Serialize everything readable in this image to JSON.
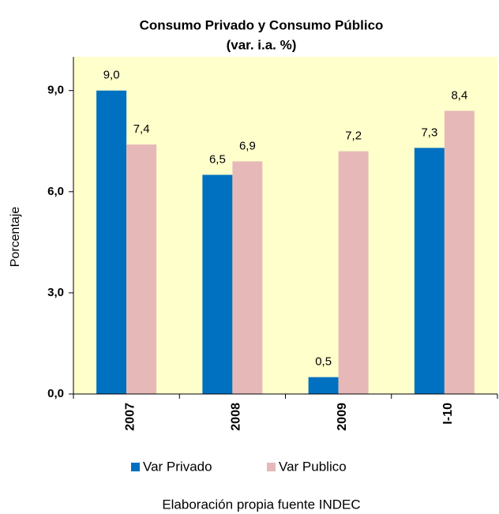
{
  "chart_data": {
    "type": "bar",
    "title": "Consumo Privado y Consumo Público",
    "subtitle": "(var. i.a. %)",
    "y_label": "Porcentaje",
    "source": "Elaboración propia fuente INDEC",
    "categories": [
      "2007",
      "2008",
      "2009",
      "I-10"
    ],
    "series": [
      {
        "name": "Var Privado",
        "color": "#0070c0",
        "values": [
          9.0,
          6.5,
          0.5,
          7.3
        ],
        "value_labels": [
          "9,0",
          "6,5",
          "0,5",
          "7,3"
        ]
      },
      {
        "name": "Var Publico",
        "color": "#e6b9b8",
        "values": [
          7.4,
          6.9,
          7.2,
          8.4
        ],
        "value_labels": [
          "7,4",
          "6,9",
          "7,2",
          "8,4"
        ]
      }
    ],
    "ylim": [
      0,
      10
    ],
    "yticks": [
      {
        "value": 0,
        "label": "0,0"
      },
      {
        "value": 3,
        "label": "3,0"
      },
      {
        "value": 6,
        "label": "6,0"
      },
      {
        "value": 9,
        "label": "9,0"
      }
    ],
    "plot_background": "#ffffcc",
    "legend": "bottom"
  }
}
